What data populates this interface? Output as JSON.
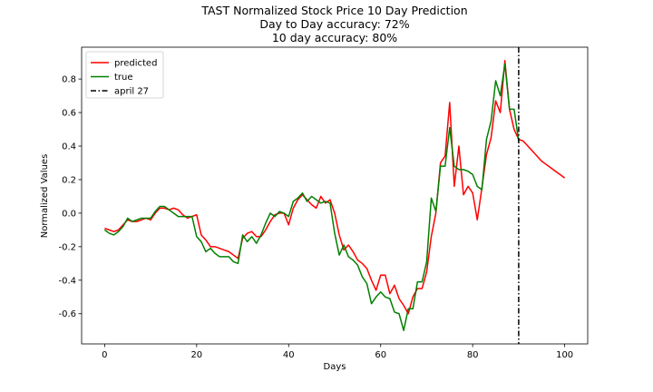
{
  "chart_data": {
    "type": "line",
    "title_lines": [
      "TAST Normalized Stock Price 10 Day Prediction",
      "Day to Day accuracy: 72%",
      "10 day accuracy: 80%"
    ],
    "xlabel": "Days",
    "ylabel": "Normalized Values",
    "xlim": [
      -5,
      105
    ],
    "ylim": [
      -0.78,
      0.99
    ],
    "xticks": [
      0,
      20,
      40,
      60,
      80,
      100
    ],
    "yticks": [
      -0.6,
      -0.4,
      -0.2,
      0.0,
      0.2,
      0.4,
      0.6,
      0.8
    ],
    "grid": false,
    "legend_position": "top-left",
    "series": [
      {
        "name": "predicted",
        "color": "#ff0000",
        "x": [
          0,
          1,
          2,
          3,
          4,
          5,
          6,
          7,
          8,
          9,
          10,
          11,
          12,
          13,
          14,
          15,
          16,
          17,
          18,
          19,
          20,
          21,
          22,
          23,
          24,
          25,
          26,
          27,
          28,
          29,
          30,
          31,
          32,
          33,
          34,
          35,
          36,
          37,
          38,
          39,
          40,
          41,
          42,
          43,
          44,
          45,
          46,
          47,
          48,
          49,
          50,
          51,
          52,
          53,
          54,
          55,
          56,
          57,
          58,
          59,
          60,
          61,
          62,
          63,
          64,
          65,
          66,
          67,
          68,
          69,
          70,
          71,
          72,
          73,
          74,
          75,
          76,
          77,
          78,
          79,
          80,
          81,
          82,
          83,
          84,
          85,
          86,
          87,
          88,
          89,
          90,
          91,
          92,
          93,
          94,
          95,
          96,
          97,
          98,
          99,
          100
        ],
        "y": [
          -0.09,
          -0.1,
          -0.11,
          -0.1,
          -0.07,
          -0.04,
          -0.05,
          -0.05,
          -0.04,
          -0.03,
          -0.04,
          0.0,
          0.03,
          0.03,
          0.02,
          0.03,
          0.02,
          -0.01,
          -0.03,
          -0.02,
          -0.01,
          -0.13,
          -0.16,
          -0.2,
          -0.2,
          -0.21,
          -0.22,
          -0.23,
          -0.25,
          -0.27,
          -0.15,
          -0.12,
          -0.11,
          -0.14,
          -0.14,
          -0.1,
          -0.05,
          -0.01,
          0.0,
          0.0,
          -0.07,
          0.03,
          0.08,
          0.11,
          0.08,
          0.05,
          0.03,
          0.1,
          0.06,
          0.08,
          0.0,
          -0.13,
          -0.22,
          -0.19,
          -0.23,
          -0.28,
          -0.3,
          -0.33,
          -0.4,
          -0.46,
          -0.37,
          -0.37,
          -0.48,
          -0.43,
          -0.51,
          -0.55,
          -0.6,
          -0.5,
          -0.45,
          -0.45,
          -0.35,
          -0.14,
          0.0,
          0.3,
          0.34,
          0.66,
          0.16,
          0.4,
          0.11,
          0.16,
          0.12,
          -0.04,
          0.15,
          0.35,
          0.45,
          0.67,
          0.6,
          0.91,
          0.62,
          0.5,
          0.44,
          0.43,
          0.4,
          0.37,
          0.34,
          0.31,
          0.29,
          0.27,
          0.25,
          0.23,
          0.21
        ]
      },
      {
        "name": "true",
        "color": "#008000",
        "x": [
          0,
          1,
          2,
          3,
          4,
          5,
          6,
          7,
          8,
          9,
          10,
          11,
          12,
          13,
          14,
          15,
          16,
          17,
          18,
          19,
          20,
          21,
          22,
          23,
          24,
          25,
          26,
          27,
          28,
          29,
          30,
          31,
          32,
          33,
          34,
          35,
          36,
          37,
          38,
          39,
          40,
          41,
          42,
          43,
          44,
          45,
          46,
          47,
          48,
          49,
          50,
          51,
          52,
          53,
          54,
          55,
          56,
          57,
          58,
          59,
          60,
          61,
          62,
          63,
          64,
          65,
          66,
          67,
          68,
          69,
          70,
          71,
          72,
          73,
          74,
          75,
          76,
          77,
          78,
          79,
          80,
          81,
          82,
          83,
          84,
          85,
          86,
          87,
          88,
          89,
          90
        ],
        "y": [
          -0.1,
          -0.12,
          -0.13,
          -0.11,
          -0.08,
          -0.03,
          -0.05,
          -0.04,
          -0.03,
          -0.03,
          -0.03,
          0.01,
          0.04,
          0.04,
          0.02,
          0.0,
          -0.02,
          -0.02,
          -0.02,
          -0.02,
          -0.14,
          -0.17,
          -0.23,
          -0.21,
          -0.24,
          -0.26,
          -0.26,
          -0.26,
          -0.29,
          -0.3,
          -0.13,
          -0.17,
          -0.14,
          -0.18,
          -0.13,
          -0.06,
          0.0,
          -0.02,
          0.01,
          0.0,
          -0.02,
          0.07,
          0.09,
          0.12,
          0.07,
          0.1,
          0.08,
          0.06,
          0.07,
          0.06,
          -0.12,
          -0.25,
          -0.19,
          -0.26,
          -0.28,
          -0.31,
          -0.38,
          -0.42,
          -0.54,
          -0.5,
          -0.47,
          -0.5,
          -0.51,
          -0.59,
          -0.6,
          -0.7,
          -0.57,
          -0.57,
          -0.41,
          -0.41,
          -0.29,
          0.09,
          0.01,
          0.28,
          0.28,
          0.51,
          0.28,
          0.26,
          0.26,
          0.25,
          0.23,
          0.16,
          0.14,
          0.44,
          0.55,
          0.79,
          0.7,
          0.89,
          0.62,
          0.62,
          0.43
        ]
      }
    ],
    "vline": {
      "name": "april 27",
      "x": 90,
      "color": "#000000",
      "style": "dashdot"
    }
  }
}
